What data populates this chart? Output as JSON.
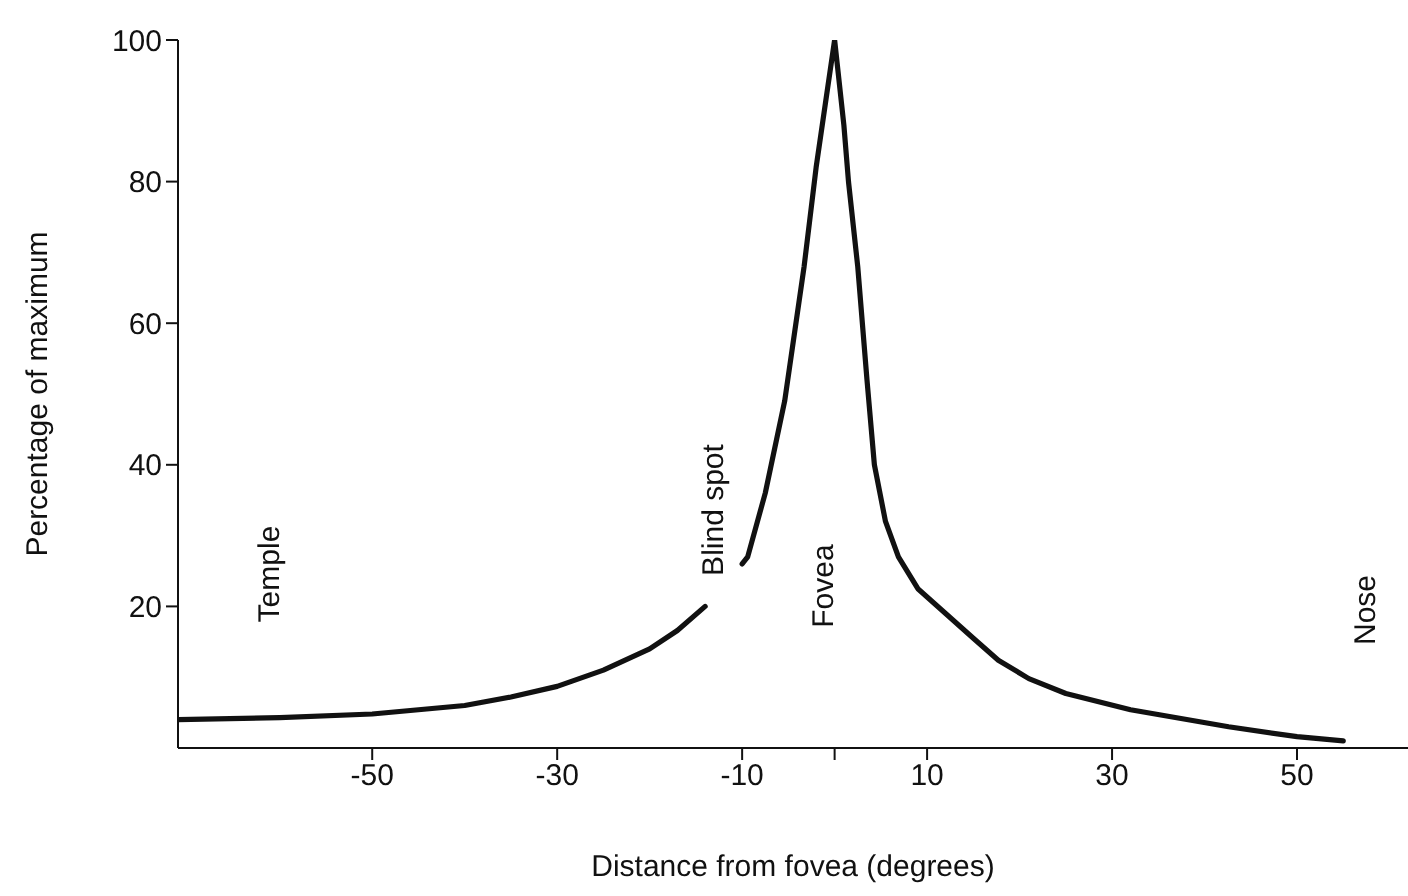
{
  "chart_data": {
    "type": "line",
    "xlabel": "Distance from fovea (degrees)",
    "ylabel": "Percentage of maximum",
    "x": [
      -71,
      -60,
      -50,
      -40,
      -35,
      -30,
      -25,
      -20,
      -17,
      -14,
      -12,
      -10,
      -9.4,
      -7.5,
      -5.4,
      -3.3,
      -2,
      -1,
      0,
      1,
      1.5,
      2.5,
      3.5,
      4.3,
      5.5,
      6.9,
      9,
      12,
      15,
      17.7,
      21,
      25,
      32,
      42.6,
      50,
      55
    ],
    "series": [
      {
        "color": "#111111",
        "values": [
          4,
          4.3,
          4.8,
          6,
          7.2,
          8.7,
          11,
          14,
          16.6,
          20,
          null,
          26,
          27,
          36,
          49,
          68,
          82,
          91,
          100,
          88,
          80,
          68,
          52,
          40,
          32,
          27,
          22.5,
          19,
          15.5,
          12.4,
          9.8,
          7.7,
          5.4,
          3,
          1.6,
          1
        ]
      }
    ],
    "xlim": [
      -71,
      62
    ],
    "xticks": [
      -50,
      -30,
      -10,
      {
        "value": 0,
        "label": null
      },
      10,
      30,
      50
    ],
    "ylim": [
      0,
      100
    ],
    "yticks": [
      20,
      40,
      60,
      80,
      100
    ],
    "annotations": [
      "Temple",
      "Blind spot",
      "Fovea",
      "Nose"
    ],
    "grid": false,
    "marker": "none",
    "line_style": "solid"
  }
}
